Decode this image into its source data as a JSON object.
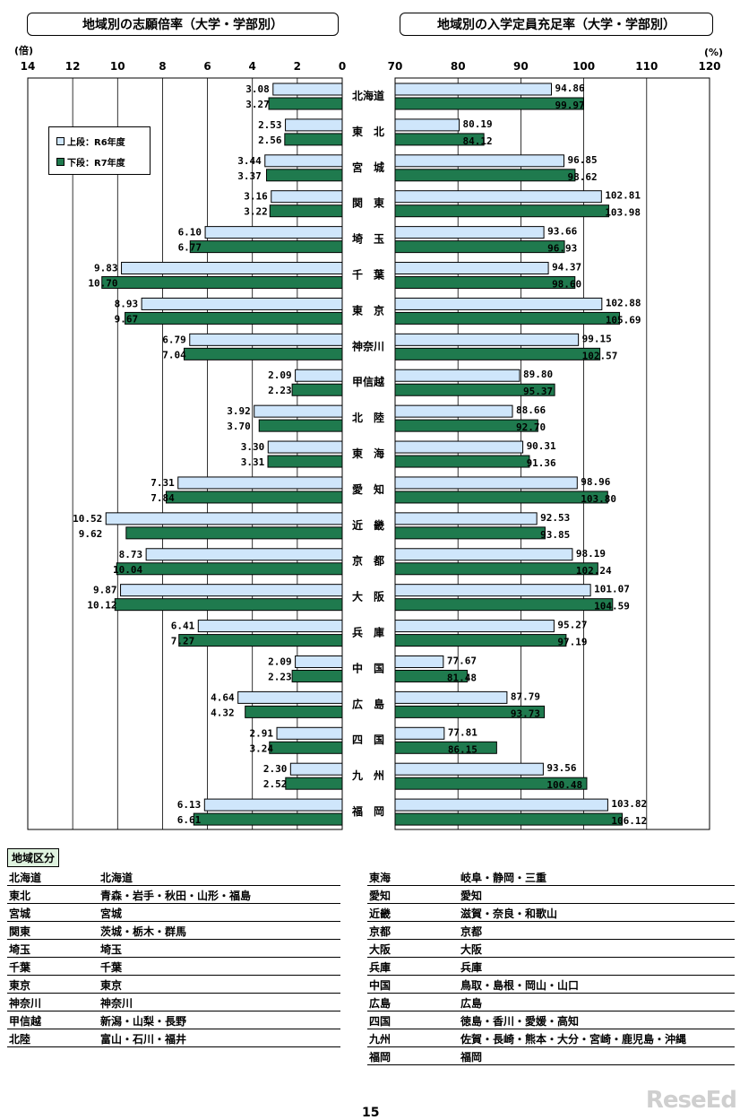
{
  "titles": {
    "left": "地域別の志願倍率（大学・学部別）",
    "right": "地域別の入学定員充足率（大学・学部別）"
  },
  "units": {
    "left": "(倍)",
    "right": "(%)"
  },
  "legend": {
    "r6": "上段：R6年度",
    "r7": "下段：R7年度"
  },
  "colors": {
    "r6": "#cfe6fb",
    "r7": "#1f7a4e",
    "accent_heading_bg": "#dff3df"
  },
  "chart_data": [
    {
      "type": "bar",
      "title": "地域別の志願倍率（大学・学部別）",
      "xlabel": "(倍)",
      "orientation": "horizontal",
      "direction": "right-to-left",
      "xlim": [
        0,
        14
      ],
      "ticks": [
        14,
        12,
        10,
        8,
        6,
        4,
        2,
        0
      ],
      "categories": [
        "北海道",
        "東　北",
        "宮　城",
        "関　東",
        "埼　玉",
        "千　葉",
        "東　京",
        "神奈川",
        "甲信越",
        "北　陸",
        "東　海",
        "愛　知",
        "近　畿",
        "京　都",
        "大　阪",
        "兵　庫",
        "中　国",
        "広　島",
        "四　国",
        "九　州",
        "福　岡"
      ],
      "series": [
        {
          "name": "上段：R6年度",
          "values": [
            3.08,
            2.53,
            3.44,
            3.16,
            6.1,
            9.83,
            8.93,
            6.79,
            2.09,
            3.92,
            3.3,
            7.31,
            10.52,
            8.73,
            9.87,
            6.41,
            2.09,
            4.64,
            2.91,
            2.3,
            6.13
          ],
          "labels": [
            "3.08",
            "2.53",
            "3.44",
            "3.16",
            "6.10",
            "9.83",
            "8.93",
            "6.79",
            "2.09",
            "3.92",
            "3.30",
            "7.31",
            "10.52",
            "8.73",
            "9.87",
            "6.41",
            "2.09",
            "4.64",
            "2.91",
            "2.30",
            "6.13"
          ]
        },
        {
          "name": "下段：R7年度",
          "values": [
            3.27,
            2.56,
            3.37,
            3.22,
            6.77,
            10.7,
            9.67,
            7.04,
            2.23,
            3.7,
            3.31,
            7.84,
            9.62,
            10.04,
            10.12,
            7.27,
            2.23,
            4.32,
            3.24,
            2.52,
            6.61
          ],
          "labels": [
            "3.27",
            "2.56",
            "3.37",
            "3.22",
            "6.77",
            "10.70",
            "9.67",
            "7.04",
            "2.23",
            "3.70",
            "3.31",
            "7.84",
            "9.62",
            "10.04",
            "10.12",
            "7.27",
            "2.23",
            "4.32",
            "3.24",
            "2.52",
            "6.61"
          ]
        }
      ],
      "grid": true,
      "legend_position": "top-left"
    },
    {
      "type": "bar",
      "title": "地域別の入学定員充足率（大学・学部別）",
      "xlabel": "(%)",
      "orientation": "horizontal",
      "xlim": [
        70,
        120
      ],
      "ticks": [
        70,
        80,
        90,
        100,
        110,
        120
      ],
      "categories": [
        "北海道",
        "東　北",
        "宮　城",
        "関　東",
        "埼　玉",
        "千　葉",
        "東　京",
        "神奈川",
        "甲信越",
        "北　陸",
        "東　海",
        "愛　知",
        "近　畿",
        "京　都",
        "大　阪",
        "兵　庫",
        "中　国",
        "広　島",
        "四　国",
        "九　州",
        "福　岡"
      ],
      "series": [
        {
          "name": "上段：R6年度",
          "values": [
            94.86,
            80.19,
            96.85,
            102.81,
            93.66,
            94.37,
            102.88,
            99.15,
            89.8,
            88.66,
            90.31,
            98.96,
            92.53,
            98.19,
            101.07,
            95.27,
            77.67,
            87.79,
            77.81,
            93.56,
            103.82
          ],
          "labels": [
            "94.86",
            "80.19",
            "96.85",
            "102.81",
            "93.66",
            "94.37",
            "102.88",
            "99.15",
            "89.80",
            "88.66",
            "90.31",
            "98.96",
            "92.53",
            "98.19",
            "101.07",
            "95.27",
            "77.67",
            "87.79",
            "77.81",
            "93.56",
            "103.82"
          ]
        },
        {
          "name": "下段：R7年度",
          "values": [
            99.97,
            84.12,
            98.62,
            103.98,
            96.93,
            98.6,
            105.69,
            102.57,
            95.37,
            92.7,
            91.36,
            103.8,
            93.85,
            102.24,
            104.59,
            97.19,
            81.48,
            93.73,
            86.15,
            100.48,
            106.12
          ],
          "labels": [
            "99.97",
            "84.12",
            "98.62",
            "103.98",
            "96.93",
            "98.60",
            "105.69",
            "102.57",
            "95.37",
            "92.70",
            "91.36",
            "103.80",
            "93.85",
            "102.24",
            "104.59",
            "97.19",
            "81.48",
            "93.73",
            "86.15",
            "100.48",
            "106.12"
          ]
        }
      ],
      "grid": true
    }
  ],
  "region_table": {
    "heading": "地域区分",
    "left": [
      [
        "北海道",
        "北海道"
      ],
      [
        "東北",
        "青森・岩手・秋田・山形・福島"
      ],
      [
        "宮城",
        "宮城"
      ],
      [
        "関東",
        "茨城・栃木・群馬"
      ],
      [
        "埼玉",
        "埼玉"
      ],
      [
        "千葉",
        "千葉"
      ],
      [
        "東京",
        "東京"
      ],
      [
        "神奈川",
        "神奈川"
      ],
      [
        "甲信越",
        "新潟・山梨・長野"
      ],
      [
        "北陸",
        "富山・石川・福井"
      ]
    ],
    "right": [
      [
        "東海",
        "岐阜・静岡・三重"
      ],
      [
        "愛知",
        "愛知"
      ],
      [
        "近畿",
        "滋賀・奈良・和歌山"
      ],
      [
        "京都",
        "京都"
      ],
      [
        "大阪",
        "大阪"
      ],
      [
        "兵庫",
        "兵庫"
      ],
      [
        "中国",
        "鳥取・島根・岡山・山口"
      ],
      [
        "広島",
        "広島"
      ],
      [
        "四国",
        "徳島・香川・愛媛・高知"
      ],
      [
        "九州",
        "佐賀・長崎・熊本・大分・宮崎・鹿児島・沖縄"
      ],
      [
        "福岡",
        "福岡"
      ]
    ]
  },
  "page_number": "15",
  "watermark": "ReseEd"
}
